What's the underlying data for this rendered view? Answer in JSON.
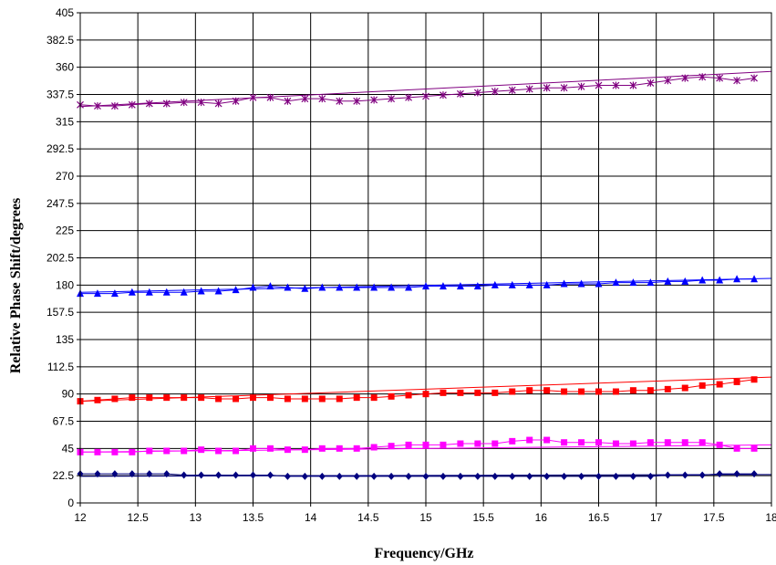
{
  "chart_data": {
    "type": "line",
    "title": "",
    "xlabel": "Frequency/GHz",
    "ylabel": "Relative Phase Shift/degrees",
    "xlim": [
      12,
      18
    ],
    "ylim": [
      0,
      405
    ],
    "xticks": [
      12,
      12.5,
      13,
      13.5,
      14,
      14.5,
      15,
      15.5,
      16,
      16.5,
      17,
      17.5,
      18
    ],
    "xtick_labels": [
      "12",
      "12.5",
      "13",
      "13.5",
      "14",
      "14.5",
      "15",
      "15.5",
      "16",
      "16.5",
      "17",
      "17.5",
      "18"
    ],
    "yticks": [
      0,
      22.5,
      45,
      67.5,
      90,
      112.5,
      135,
      157.5,
      180,
      202.5,
      225,
      247.5,
      270,
      292.5,
      315,
      337.5,
      360,
      382.5,
      405
    ],
    "ytick_labels": [
      "0",
      "22.5",
      "45",
      "67.5",
      "90",
      "112.5",
      "135",
      "157.5",
      "180",
      "202.5",
      "225",
      "247.5",
      "270",
      "292.5",
      "315",
      "337.5",
      "360",
      "382.5",
      "405"
    ],
    "grid": true,
    "legend": "none",
    "x": [
      12.0,
      12.15,
      12.3,
      12.45,
      12.6,
      12.75,
      12.9,
      13.05,
      13.2,
      13.35,
      13.5,
      13.65,
      13.8,
      13.95,
      14.1,
      14.25,
      14.4,
      14.55,
      14.7,
      14.85,
      15.0,
      15.15,
      15.3,
      15.45,
      15.6,
      15.75,
      15.9,
      16.05,
      16.2,
      16.35,
      16.5,
      16.65,
      16.8,
      16.95,
      17.1,
      17.25,
      17.4,
      17.55,
      17.7,
      17.85
    ],
    "series": [
      {
        "marker": "star",
        "color": "#800080",
        "values": [
          329,
          328,
          328,
          329,
          330,
          330,
          331,
          331,
          330,
          332,
          335,
          335,
          332,
          334,
          334,
          332,
          332,
          333,
          334,
          335,
          336,
          337,
          338,
          339,
          340,
          341,
          342,
          343,
          343,
          344,
          345,
          345,
          345,
          347,
          349,
          351,
          352,
          351,
          349,
          351
        ],
        "trend": [
          327.5,
          356.5
        ]
      },
      {
        "marker": "triangle",
        "color": "#0000ff",
        "values": [
          173,
          173,
          173,
          174,
          174,
          174,
          174,
          175,
          175,
          176,
          178,
          179,
          178,
          177,
          178,
          178,
          178,
          178,
          178,
          178,
          179,
          179,
          179,
          179,
          180,
          180,
          180,
          180,
          181,
          181,
          181,
          182,
          182,
          182,
          183,
          183,
          184,
          184,
          185,
          185
        ],
        "trend": [
          174,
          185.5
        ]
      },
      {
        "marker": "square",
        "color": "#ff0000",
        "values": [
          84,
          85,
          86,
          87,
          87,
          87,
          87,
          87,
          86,
          86,
          87,
          87,
          86,
          86,
          86,
          86,
          87,
          87,
          88,
          89,
          90,
          91,
          91,
          91,
          91,
          92,
          93,
          93,
          92,
          92,
          92,
          92,
          93,
          93,
          94,
          95,
          97,
          98,
          100,
          102
        ],
        "trend": [
          84,
          104
        ]
      },
      {
        "marker": "square",
        "color": "#ff00ff",
        "values": [
          42,
          42,
          42,
          42,
          43,
          43,
          43,
          44,
          43,
          43,
          45,
          45,
          44,
          44,
          45,
          45,
          45,
          46,
          47,
          48,
          48,
          48,
          49,
          49,
          49,
          51,
          52,
          52,
          50,
          50,
          50,
          49,
          49,
          50,
          50,
          50,
          50,
          48,
          45,
          45
        ],
        "trend": [
          42,
          48
        ]
      },
      {
        "marker": "diamond",
        "color": "#000080",
        "values": [
          24,
          24,
          24,
          24,
          24,
          24,
          23,
          23,
          23,
          23,
          23,
          23,
          22,
          22,
          22,
          22,
          22,
          22,
          22,
          22,
          22,
          22,
          22,
          22,
          22,
          22,
          22,
          22,
          22,
          22,
          22,
          22,
          22,
          22,
          23,
          23,
          23,
          24,
          24,
          24
        ],
        "trend": [
          22,
          23.5
        ]
      }
    ]
  }
}
